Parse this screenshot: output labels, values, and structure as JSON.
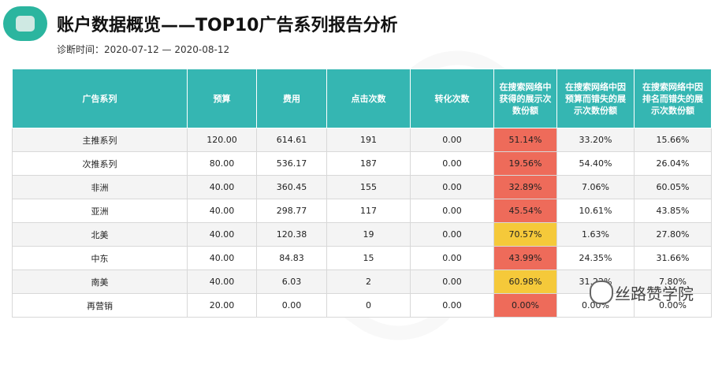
{
  "header": {
    "title": "账户数据概览——TOP10广告系列报告分析",
    "subtitle": "诊断时间：2020-07-12 — 2020-08-12"
  },
  "table": {
    "columns": [
      "广告系列",
      "预算",
      "费用",
      "点击次数",
      "转化次数",
      "在搜索网络中获得的展示次数份额",
      "在搜索网络中因预算而错失的展示次数份额",
      "在搜索网络中因排名而错失的展示次数份额"
    ],
    "rows": [
      {
        "cells": [
          "主推系列",
          "120.00",
          "614.61",
          "191",
          "0.00",
          "51.14%",
          "33.20%",
          "15.66%"
        ],
        "share_highlight": "red"
      },
      {
        "cells": [
          "次推系列",
          "80.00",
          "536.17",
          "187",
          "0.00",
          "19.56%",
          "54.40%",
          "26.04%"
        ],
        "share_highlight": "red"
      },
      {
        "cells": [
          "非洲",
          "40.00",
          "360.45",
          "155",
          "0.00",
          "32.89%",
          "7.06%",
          "60.05%"
        ],
        "share_highlight": "red"
      },
      {
        "cells": [
          "亚洲",
          "40.00",
          "298.77",
          "117",
          "0.00",
          "45.54%",
          "10.61%",
          "43.85%"
        ],
        "share_highlight": "red"
      },
      {
        "cells": [
          "北美",
          "40.00",
          "120.38",
          "19",
          "0.00",
          "70.57%",
          "1.63%",
          "27.80%"
        ],
        "share_highlight": "yellow"
      },
      {
        "cells": [
          "中东",
          "40.00",
          "84.83",
          "15",
          "0.00",
          "43.99%",
          "24.35%",
          "31.66%"
        ],
        "share_highlight": "red"
      },
      {
        "cells": [
          "南美",
          "40.00",
          "6.03",
          "2",
          "0.00",
          "60.98%",
          "31.22%",
          "7.80%"
        ],
        "share_highlight": "yellow"
      },
      {
        "cells": [
          "再营销",
          "20.00",
          "0.00",
          "0",
          "0.00",
          "0.00%",
          "0.00%",
          "0.00%"
        ],
        "share_highlight": "red"
      }
    ]
  },
  "colors": {
    "header_bg": "#35b6b2",
    "highlight_red": "#ee6b5a",
    "highlight_yellow": "#f5c93a",
    "logo": "#2bb59f"
  },
  "watermark_text": "丝路赞学院"
}
